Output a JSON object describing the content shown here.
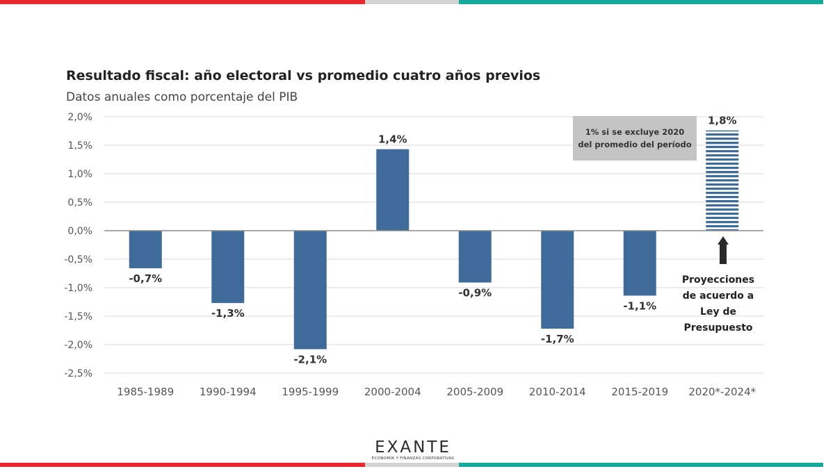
{
  "colors": {
    "bar": "#3e6b9a",
    "stripe_red": "#e8282e",
    "stripe_gray": "#d4d4d4",
    "stripe_teal": "#16a89a",
    "note_box": "#c4c4c4"
  },
  "chart_data": {
    "type": "bar",
    "title": "Resultado fiscal: año electoral vs promedio cuatro años previos",
    "subtitle": "Datos anuales como porcentaje del PIB",
    "categories": [
      "1985-1989",
      "1990-1994",
      "1995-1999",
      "2000-2004",
      "2005-2009",
      "2010-2014",
      "2015-2019",
      "2020*-2024*"
    ],
    "values": [
      -0.66,
      -1.27,
      -2.08,
      1.43,
      -0.91,
      -1.72,
      -1.14,
      1.76
    ],
    "data_labels": [
      "-0,7%",
      "-1,3%",
      "-2,1%",
      "1,4%",
      "-0,9%",
      "-1,7%",
      "-1,1%",
      "1,8%"
    ],
    "projected": [
      false,
      false,
      false,
      false,
      false,
      false,
      false,
      true
    ],
    "ylim": [
      -2.5,
      2.0
    ],
    "yticks": [
      2.0,
      1.5,
      1.0,
      0.5,
      0.0,
      -0.5,
      -1.0,
      -1.5,
      -2.0,
      -2.5
    ],
    "ytick_labels": [
      "2,0%",
      "1,5%",
      "1,0%",
      "0,5%",
      "0,0%",
      "-0,5%",
      "-1,0%",
      "-1,5%",
      "-2,0%",
      "-2,5%"
    ],
    "grid": true,
    "xlabel": "",
    "ylabel": "",
    "annotations": {
      "note": "1% si se excluye 2020 del promedio del período",
      "projection_lines": [
        "Proyecciones",
        "de acuerdo a",
        "Ley de",
        "Presupuesto"
      ]
    }
  },
  "logo": {
    "word": "EXANTE",
    "tagline": "ECONOMÍA Y FINANZAS CORPORATIVAS"
  }
}
